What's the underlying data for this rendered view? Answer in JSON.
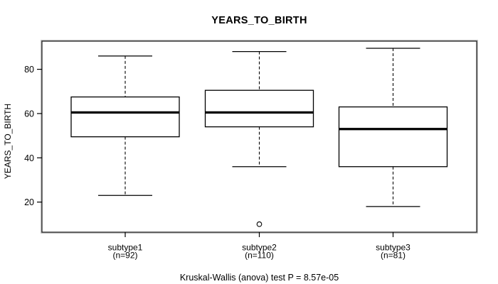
{
  "title": "YEARS_TO_BIRTH",
  "y_axis_label": "YEARS_TO_BIRTH",
  "caption": "Kruskal-Wallis (anova) test P = 8.57e-05",
  "colors": {
    "line": "#000000",
    "background": "#ffffff",
    "border_halo": "#b0b0b0"
  },
  "chart_data": {
    "type": "boxplot",
    "title": "YEARS_TO_BIRTH",
    "xlabel": "",
    "ylabel": "YEARS_TO_BIRTH",
    "categories": [
      "subtype1",
      "subtype2",
      "subtype3"
    ],
    "category_sublabels": [
      "(n=92)",
      "(n=110)",
      "(n=81)"
    ],
    "series": [
      {
        "name": "subtype1",
        "n": 92,
        "whisker_low": 23,
        "q1": 49.5,
        "median": 60.5,
        "q3": 67.5,
        "whisker_high": 86,
        "outliers": []
      },
      {
        "name": "subtype2",
        "n": 110,
        "whisker_low": 36,
        "q1": 54,
        "median": 60.5,
        "q3": 70.5,
        "whisker_high": 88,
        "outliers": [
          10
        ]
      },
      {
        "name": "subtype3",
        "n": 81,
        "whisker_low": 18,
        "q1": 36,
        "median": 53,
        "q3": 63,
        "whisker_high": 89.5,
        "outliers": []
      }
    ],
    "yticks": [
      20,
      40,
      60,
      80
    ],
    "ylim": [
      6.4,
      92.7
    ],
    "grid": false,
    "legend": false,
    "annotation": "Kruskal-Wallis (anova) test P = 8.57e-05"
  }
}
